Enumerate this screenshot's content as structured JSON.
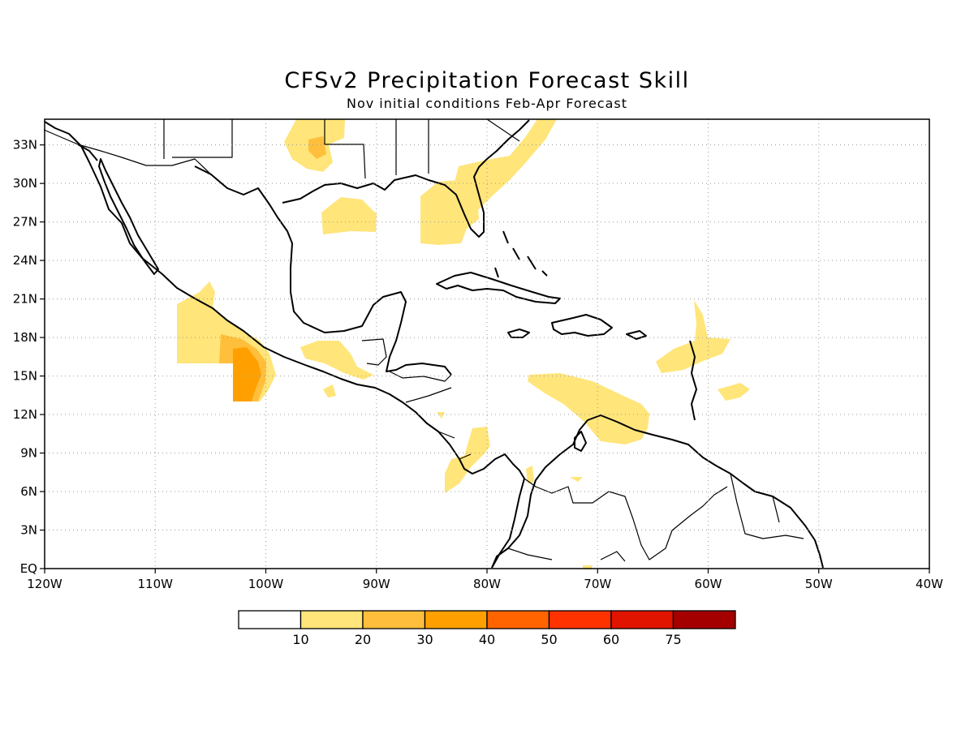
{
  "title": "CFSv2 Precipitation Forecast Skill",
  "subtitle": "Nov initial conditions  Feb-Apr Forecast",
  "map": {
    "lon_range": [
      -120,
      -40
    ],
    "lat_range": [
      0,
      35
    ],
    "lon_ticks": [
      {
        "v": -120,
        "label": "120W"
      },
      {
        "v": -110,
        "label": "110W"
      },
      {
        "v": -100,
        "label": "100W"
      },
      {
        "v": -90,
        "label": "90W"
      },
      {
        "v": -80,
        "label": "80W"
      },
      {
        "v": -70,
        "label": "70W"
      },
      {
        "v": -60,
        "label": "60W"
      },
      {
        "v": -50,
        "label": "50W"
      },
      {
        "v": -40,
        "label": "40W"
      }
    ],
    "lat_ticks": [
      {
        "v": 0,
        "label": "EQ"
      },
      {
        "v": 3,
        "label": "3N"
      },
      {
        "v": 6,
        "label": "6N"
      },
      {
        "v": 9,
        "label": "9N"
      },
      {
        "v": 12,
        "label": "12N"
      },
      {
        "v": 15,
        "label": "15N"
      },
      {
        "v": 18,
        "label": "18N"
      },
      {
        "v": 21,
        "label": "21N"
      },
      {
        "v": 24,
        "label": "24N"
      },
      {
        "v": 27,
        "label": "27N"
      },
      {
        "v": 30,
        "label": "30N"
      },
      {
        "v": 33,
        "label": "33N"
      }
    ],
    "grid": true
  },
  "colorbar": {
    "colors": [
      "#ffffff",
      "#ffe57a",
      "#ffbf3c",
      "#ffa000",
      "#ff6400",
      "#ff3200",
      "#e11400",
      "#a50000"
    ],
    "labels": [
      "10",
      "20",
      "30",
      "40",
      "50",
      "60",
      "75"
    ]
  },
  "colors": {
    "level1": "#ffe57a",
    "level2": "#ffbf3c",
    "level3": "#ffa000",
    "coast": "#000000",
    "grid": "#9a9a9a"
  }
}
